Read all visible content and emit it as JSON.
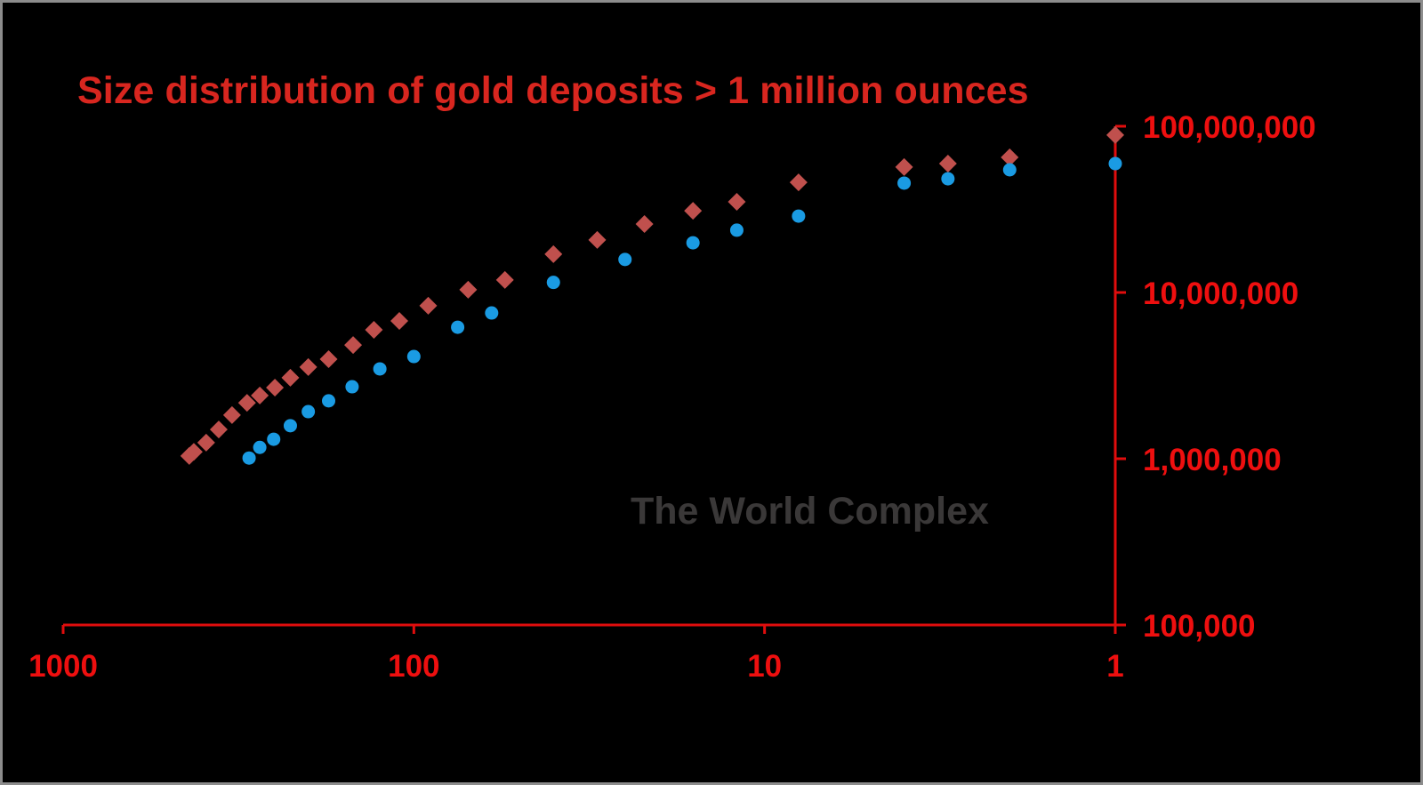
{
  "colors": {
    "background": "#000000",
    "axis": "#e00d0d",
    "title": "#d8261f",
    "tick_label": "#ee0f0f",
    "series_cumulative": "#c0504d",
    "series_deposit": "#1a9be3",
    "watermark": "#3a3838",
    "frame_border": "#8c8c8c"
  },
  "watermark": "The World Complex",
  "chart_data": {
    "type": "scatter",
    "title": "Size distribution of gold deposits > 1 million ounces",
    "xlabel": "",
    "ylabel": "",
    "x_scale": "log",
    "y_scale": "log",
    "x_reversed": true,
    "xlim": [
      1000,
      1
    ],
    "ylim": [
      100000,
      100000000
    ],
    "x_ticks": [
      1000,
      100,
      10,
      1
    ],
    "x_tick_labels": [
      "1000",
      "100",
      "10",
      "1"
    ],
    "y_ticks": [
      100000,
      1000000,
      10000000,
      100000000
    ],
    "y_tick_labels": [
      "100,000",
      "1,000,000",
      "10,000,000",
      "100,000,000"
    ],
    "y_axis_position": "right",
    "grid": false,
    "legend": null,
    "series": [
      {
        "name": "series-diamond (red)",
        "marker": "diamond",
        "color": "#c0504d",
        "points": [
          {
            "x": 437,
            "y": 1040000
          },
          {
            "x": 424,
            "y": 1100000
          },
          {
            "x": 391,
            "y": 1250000
          },
          {
            "x": 360,
            "y": 1500000
          },
          {
            "x": 330,
            "y": 1830000
          },
          {
            "x": 299,
            "y": 2170000
          },
          {
            "x": 275,
            "y": 2400000
          },
          {
            "x": 249,
            "y": 2680000
          },
          {
            "x": 225,
            "y": 3070000
          },
          {
            "x": 200,
            "y": 3560000
          },
          {
            "x": 175,
            "y": 3970000
          },
          {
            "x": 149,
            "y": 4830000
          },
          {
            "x": 130,
            "y": 5960000
          },
          {
            "x": 110,
            "y": 6740000
          },
          {
            "x": 91,
            "y": 8320000
          },
          {
            "x": 70,
            "y": 10400000
          },
          {
            "x": 55,
            "y": 11900000
          },
          {
            "x": 40,
            "y": 17000000
          },
          {
            "x": 30,
            "y": 20700000
          },
          {
            "x": 22,
            "y": 25800000
          },
          {
            "x": 16,
            "y": 31000000
          },
          {
            "x": 12,
            "y": 35100000
          },
          {
            "x": 8,
            "y": 46000000
          },
          {
            "x": 4,
            "y": 56800000
          },
          {
            "x": 3,
            "y": 59600000
          },
          {
            "x": 2,
            "y": 65000000
          },
          {
            "x": 1,
            "y": 88500000
          }
        ]
      },
      {
        "name": "series-circle (blue)",
        "marker": "circle",
        "color": "#1a9be3",
        "points": [
          {
            "x": 295,
            "y": 1010000
          },
          {
            "x": 275,
            "y": 1170000
          },
          {
            "x": 251,
            "y": 1310000
          },
          {
            "x": 225,
            "y": 1580000
          },
          {
            "x": 200,
            "y": 1920000
          },
          {
            "x": 175,
            "y": 2230000
          },
          {
            "x": 150,
            "y": 2710000
          },
          {
            "x": 125,
            "y": 3470000
          },
          {
            "x": 100,
            "y": 4120000
          },
          {
            "x": 75,
            "y": 6180000
          },
          {
            "x": 60,
            "y": 7530000
          },
          {
            "x": 40,
            "y": 11500000
          },
          {
            "x": 25,
            "y": 15800000
          },
          {
            "x": 16,
            "y": 19900000
          },
          {
            "x": 12,
            "y": 23700000
          },
          {
            "x": 8,
            "y": 28800000
          },
          {
            "x": 4,
            "y": 45500000
          },
          {
            "x": 3,
            "y": 48300000
          },
          {
            "x": 2,
            "y": 54700000
          },
          {
            "x": 1,
            "y": 59600000
          }
        ]
      }
    ]
  }
}
